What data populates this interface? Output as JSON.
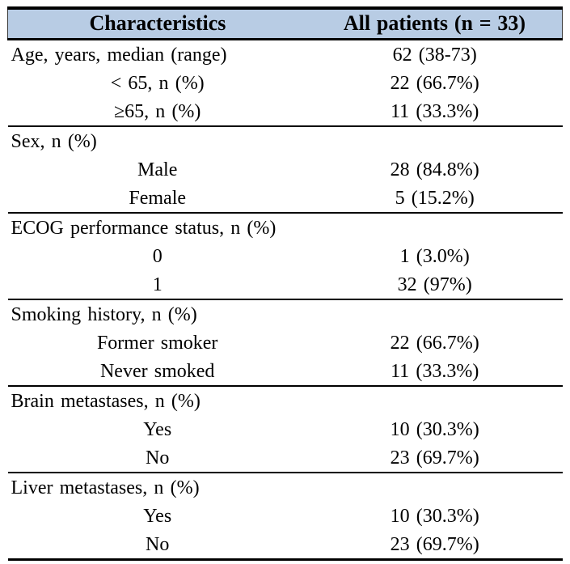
{
  "table": {
    "header_bg": "#b8cce4",
    "headers": [
      "Characteristics",
      "All patients (n = 33)"
    ],
    "sections": [
      {
        "rows": [
          {
            "label": "Age, years, median (range)",
            "value": "62 (38-73)",
            "indent": false
          },
          {
            "label": "< 65, n (%)",
            "value": "22 (66.7%)",
            "indent": true
          },
          {
            "label": "≥65, n (%)",
            "value": "11 (33.3%)",
            "indent": true
          }
        ]
      },
      {
        "rows": [
          {
            "label": "Sex, n (%)",
            "value": "",
            "indent": false
          },
          {
            "label": "Male",
            "value": "28 (84.8%)",
            "indent": true
          },
          {
            "label": "Female",
            "value": "5 (15.2%)",
            "indent": true
          }
        ]
      },
      {
        "rows": [
          {
            "label": "ECOG performance status, n (%)",
            "value": "",
            "indent": false
          },
          {
            "label": "0",
            "value": "1 (3.0%)",
            "indent": true
          },
          {
            "label": "1",
            "value": "32 (97%)",
            "indent": true
          }
        ]
      },
      {
        "rows": [
          {
            "label": "Smoking history, n (%)",
            "value": "",
            "indent": false
          },
          {
            "label": "Former smoker",
            "value": "22 (66.7%)",
            "indent": true
          },
          {
            "label": "Never smoked",
            "value": "11 (33.3%)",
            "indent": true
          }
        ]
      },
      {
        "rows": [
          {
            "label": "Brain metastases, n (%)",
            "value": "",
            "indent": false
          },
          {
            "label": "Yes",
            "value": "10 (30.3%)",
            "indent": true
          },
          {
            "label": "No",
            "value": "23 (69.7%)",
            "indent": true
          }
        ]
      },
      {
        "rows": [
          {
            "label": "Liver metastases, n (%)",
            "value": "",
            "indent": false
          },
          {
            "label": "Yes",
            "value": "10 (30.3%)",
            "indent": true
          },
          {
            "label": "No",
            "value": "23 (69.7%)",
            "indent": true
          }
        ]
      }
    ]
  }
}
